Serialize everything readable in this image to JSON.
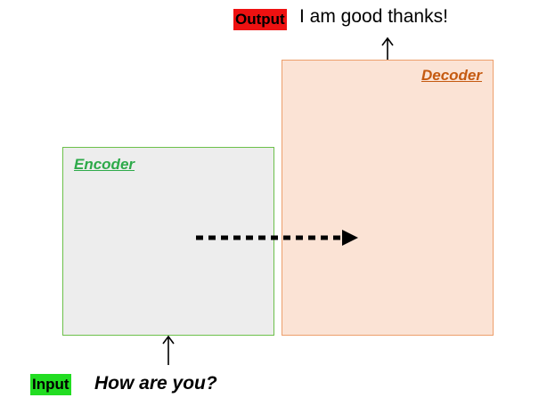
{
  "encoder": {
    "label": "Encoder",
    "label_color": "#2eaa4a",
    "border_color": "#6cc04a",
    "fill_color": "#ededed"
  },
  "decoder": {
    "label": "Decoder",
    "label_color": "#c55a11",
    "border_color": "#ed9e6b",
    "fill_color": "#fbe3d5"
  },
  "input": {
    "tag": "Input",
    "tag_color": "#22dd22",
    "text": "How are you?"
  },
  "output": {
    "tag": "Output",
    "tag_color": "#ee1111",
    "text": "I am good thanks!"
  }
}
